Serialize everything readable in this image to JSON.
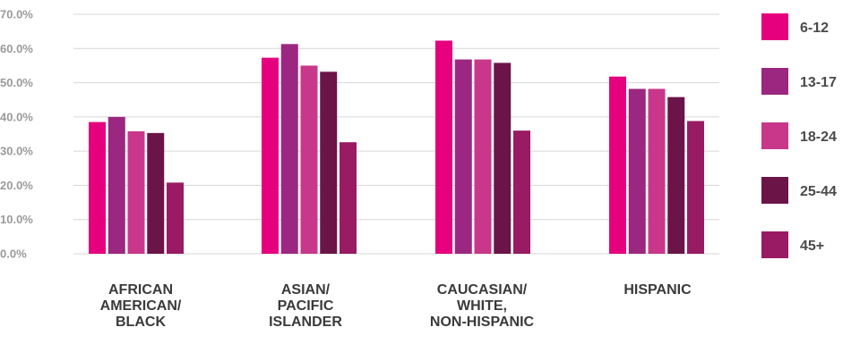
{
  "chart_data": {
    "type": "bar",
    "categories": [
      [
        "AFRICAN",
        "AMERICAN/",
        "BLACK"
      ],
      [
        "ASIAN/",
        "PACIFIC",
        "ISLANDER"
      ],
      [
        "CAUCASIAN/",
        "WHITE,",
        "NON-HISPANIC"
      ],
      [
        "HISPANIC"
      ]
    ],
    "series": [
      {
        "name": "6-12",
        "color": "#e6007e",
        "values": [
          38.5,
          57.3,
          62.3,
          51.8
        ]
      },
      {
        "name": "13-17",
        "color": "#9b2780",
        "values": [
          40.0,
          61.3,
          56.8,
          48.2
        ]
      },
      {
        "name": "18-24",
        "color": "#c8378a",
        "values": [
          35.8,
          55.0,
          56.8,
          48.2
        ]
      },
      {
        "name": "25-44",
        "color": "#6b1448",
        "values": [
          35.3,
          53.2,
          55.8,
          45.8
        ]
      },
      {
        "name": "45+",
        "color": "#981b63",
        "values": [
          20.8,
          32.6,
          36.0,
          38.8
        ]
      }
    ],
    "yticks": [
      "0.0%",
      "10.0%",
      "20.0%",
      "30.0%",
      "40.0%",
      "50.0%",
      "60.0%",
      "70.0%"
    ],
    "ylim": [
      0,
      70
    ],
    "grid": true,
    "legend": "right",
    "title": "",
    "xlabel": "",
    "ylabel": ""
  }
}
